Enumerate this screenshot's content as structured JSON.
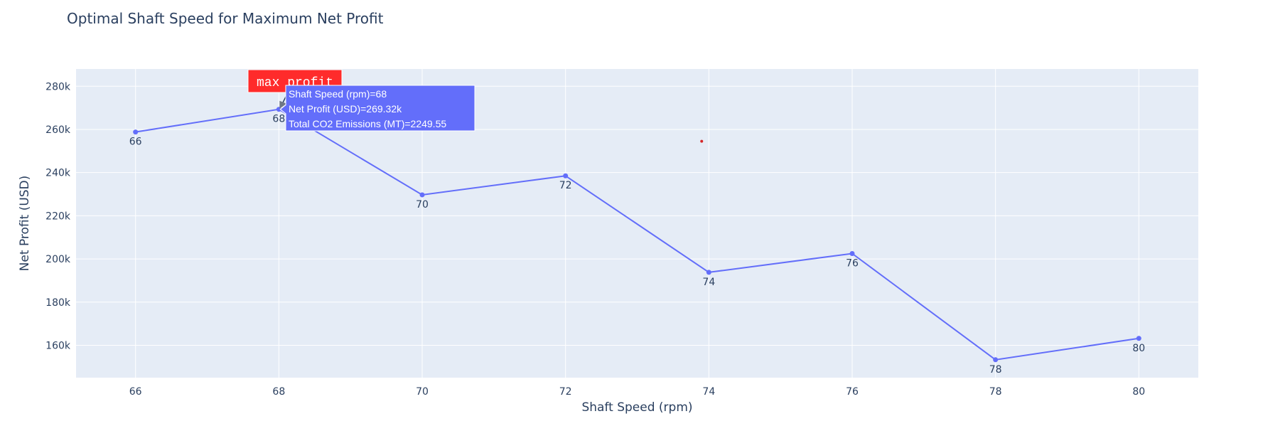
{
  "chart_data": {
    "type": "line",
    "title": "Optimal Shaft Speed for Maximum Net Profit",
    "xlabel": "Shaft Speed (rpm)",
    "ylabel": "Net Profit (USD)",
    "xlim": [
      65.17,
      80.83
    ],
    "ylim": [
      145000,
      288000
    ],
    "x_ticks": [
      66,
      68,
      70,
      72,
      74,
      76,
      78,
      80
    ],
    "y_ticks": [
      160000,
      180000,
      200000,
      220000,
      240000,
      260000,
      280000
    ],
    "y_tick_labels": [
      "160k",
      "180k",
      "200k",
      "220k",
      "240k",
      "260k",
      "280k"
    ],
    "grid": true,
    "series": [
      {
        "color": "#636efa",
        "x": [
          66,
          68,
          70,
          72,
          74,
          76,
          78,
          80
        ],
        "y": [
          258800,
          269320,
          229700,
          238500,
          193800,
          202500,
          153300,
          163200
        ],
        "text": [
          "66",
          "68",
          "70",
          "72",
          "74",
          "76",
          "78",
          "80"
        ]
      }
    ],
    "extra_points": [
      {
        "x": 73.9,
        "y": 254500,
        "color": "#d62728"
      }
    ],
    "annotation": {
      "text": "max profit",
      "x": 68,
      "y": 269320,
      "bgcolor": "#ff2b2b"
    },
    "hover": {
      "x": 68,
      "y": 269320,
      "lines": [
        "Shaft Speed (rpm)=68",
        "Net Profit (USD)=269.32k",
        "Total CO2 Emissions (MT)=2249.55"
      ],
      "bgcolor": "#636efa"
    }
  }
}
